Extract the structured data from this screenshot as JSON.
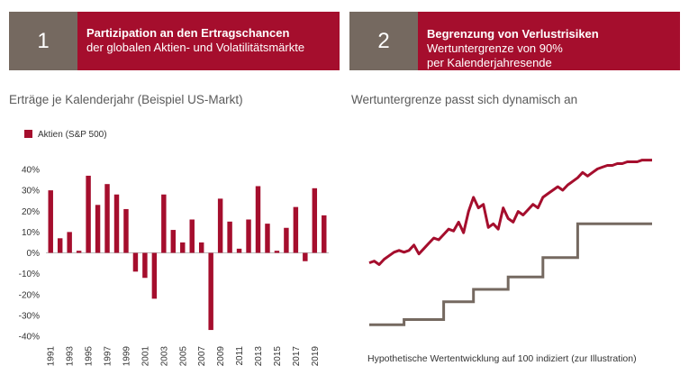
{
  "panel1": {
    "number": "1",
    "title": "Partizipation an den Ertragschancen",
    "line2": "der globalen Aktien- und Volatilitätsmärkte",
    "subtitle": "Erträge je Kalenderjahr (Beispiel US-Markt)"
  },
  "panel2": {
    "number": "2",
    "title": "Begrenzung von Verlustrisiken",
    "line2": "Wertuntergrenze von 90%",
    "line3": "per Kalenderjahresende",
    "subtitle": "Wertuntergrenze passt sich dynamisch an",
    "caption": "Hypothetische Wertentwicklung auf 100 indiziert (zur Illustration)"
  },
  "colors": {
    "accent": "#a50e2d",
    "gray": "#756960",
    "bar": "#a50e2d"
  },
  "chart_data": [
    {
      "type": "bar",
      "legend": [
        "Aktien (S&P 500)"
      ],
      "categories": [
        "1991",
        "1992",
        "1993",
        "1994",
        "1995",
        "1996",
        "1997",
        "1998",
        "1999",
        "2000",
        "2001",
        "2002",
        "2003",
        "2004",
        "2005",
        "2006",
        "2007",
        "2008",
        "2009",
        "2010",
        "2011",
        "2012",
        "2013",
        "2014",
        "2015",
        "2016",
        "2017",
        "2018",
        "2019",
        "2020"
      ],
      "x_tick_labels": [
        "1991",
        "1993",
        "1995",
        "1997",
        "1999",
        "2001",
        "2003",
        "2005",
        "2007",
        "2009",
        "2011",
        "2013",
        "2015",
        "2017",
        "2019"
      ],
      "series": [
        {
          "name": "Aktien (S&P 500)",
          "values": [
            30,
            7,
            10,
            1,
            37,
            23,
            33,
            28,
            21,
            -9,
            -12,
            -22,
            28,
            11,
            5,
            16,
            5,
            -37,
            26,
            15,
            2,
            16,
            32,
            14,
            1,
            12,
            22,
            -4,
            31,
            18
          ]
        }
      ],
      "ylim": [
        -40,
        40
      ],
      "y_ticks": [
        "-40%",
        "-30%",
        "-20%",
        "-10%",
        "0%",
        "10%",
        "20%",
        "30%",
        "40%"
      ],
      "legend_position": "top-left"
    },
    {
      "type": "line",
      "x": [
        0,
        1,
        2,
        3,
        4,
        5,
        6,
        7,
        8,
        9,
        10,
        11,
        12,
        13,
        14,
        15,
        16,
        17,
        18,
        19,
        20,
        21,
        22,
        23,
        24,
        25,
        26,
        27,
        28,
        29,
        30,
        31,
        32,
        33,
        34,
        35,
        36,
        37,
        38,
        39,
        40,
        41,
        42,
        43,
        44,
        45,
        46,
        47,
        48,
        49,
        50,
        51,
        52,
        53,
        54,
        55,
        56,
        57
      ],
      "series": [
        {
          "name": "",
          "values": [
            55,
            56,
            54,
            57,
            59,
            61,
            62,
            61,
            62,
            65,
            60,
            63,
            66,
            69,
            68,
            71,
            74,
            73,
            78,
            72,
            84,
            92,
            86,
            88,
            75,
            77,
            74,
            86,
            80,
            78,
            84,
            82,
            85,
            88,
            86,
            92,
            94,
            96,
            98,
            96,
            99,
            101,
            103,
            106,
            104,
            106,
            108,
            109,
            110,
            110,
            111,
            111,
            112,
            112,
            112,
            113,
            113,
            113
          ],
          "style": "line"
        },
        {
          "name": "",
          "values": [
            20,
            20,
            20,
            20,
            20,
            20,
            20,
            23,
            23,
            23,
            23,
            23,
            23,
            23,
            23,
            33,
            33,
            33,
            33,
            33,
            33,
            40,
            40,
            40,
            40,
            40,
            40,
            40,
            47,
            47,
            47,
            47,
            47,
            47,
            47,
            58,
            58,
            58,
            58,
            58,
            58,
            58,
            77,
            77,
            77,
            77,
            77,
            77,
            77,
            77,
            77,
            77,
            77,
            77,
            77,
            77,
            77,
            77
          ],
          "style": "step"
        }
      ],
      "ylim": [
        10,
        125
      ]
    }
  ]
}
